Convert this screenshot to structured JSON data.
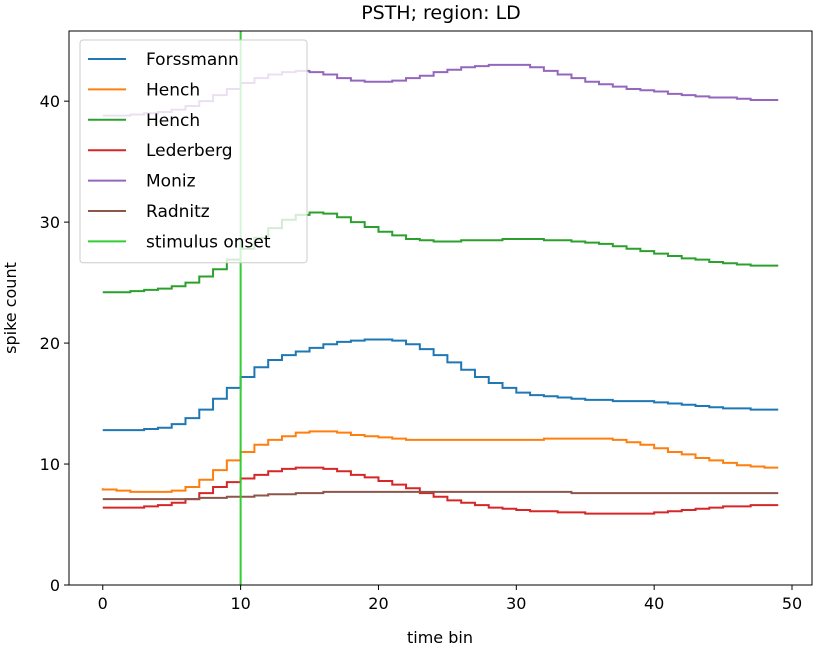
{
  "chart_data": {
    "type": "line",
    "step": true,
    "title": "PSTH; region: LD",
    "xlabel": "time bin",
    "ylabel": "spike count",
    "xlim": [
      -2.45,
      51.45
    ],
    "ylim": [
      0,
      45.8
    ],
    "xticks": [
      0,
      10,
      20,
      30,
      40,
      50
    ],
    "yticks": [
      0,
      10,
      20,
      30,
      40
    ],
    "grid": false,
    "legend_position": "top-left",
    "x": [
      0,
      1,
      2,
      3,
      4,
      5,
      6,
      7,
      8,
      9,
      10,
      11,
      12,
      13,
      14,
      15,
      16,
      17,
      18,
      19,
      20,
      21,
      22,
      23,
      24,
      25,
      26,
      27,
      28,
      29,
      30,
      31,
      32,
      33,
      34,
      35,
      36,
      37,
      38,
      39,
      40,
      41,
      42,
      43,
      44,
      45,
      46,
      47,
      48,
      49
    ],
    "series": [
      {
        "name": "Forssmann",
        "color": "#1f77b4",
        "values": [
          12.8,
          12.8,
          12.8,
          12.8,
          12.9,
          13.0,
          13.3,
          13.8,
          14.5,
          15.4,
          16.3,
          17.2,
          18.0,
          18.6,
          19.0,
          19.3,
          19.6,
          19.9,
          20.1,
          20.2,
          20.3,
          20.3,
          20.2,
          19.9,
          19.5,
          19.0,
          18.4,
          17.8,
          17.2,
          16.7,
          16.3,
          15.9,
          15.7,
          15.6,
          15.5,
          15.4,
          15.3,
          15.3,
          15.2,
          15.2,
          15.2,
          15.1,
          15.0,
          14.9,
          14.8,
          14.7,
          14.6,
          14.6,
          14.5,
          14.5
        ]
      },
      {
        "name": "Hench",
        "color": "#ff7f0e",
        "values": [
          8.0,
          7.9,
          7.8,
          7.7,
          7.7,
          7.7,
          7.8,
          8.1,
          8.7,
          9.5,
          10.3,
          11.0,
          11.6,
          12.0,
          12.3,
          12.6,
          12.7,
          12.7,
          12.6,
          12.4,
          12.3,
          12.2,
          12.1,
          12.0,
          12.0,
          12.0,
          12.0,
          12.0,
          12.0,
          12.0,
          12.0,
          12.0,
          12.0,
          12.1,
          12.1,
          12.1,
          12.1,
          12.1,
          12.0,
          11.8,
          11.6,
          11.3,
          11.0,
          10.8,
          10.5,
          10.3,
          10.1,
          9.9,
          9.8,
          9.7
        ]
      },
      {
        "name": "Hench",
        "color": "#2ca02c",
        "values": [
          24.2,
          24.2,
          24.2,
          24.3,
          24.4,
          24.5,
          24.7,
          25.0,
          25.5,
          26.1,
          26.9,
          27.8,
          28.7,
          29.5,
          30.2,
          30.6,
          30.8,
          30.7,
          30.4,
          30.0,
          29.6,
          29.2,
          28.9,
          28.6,
          28.5,
          28.4,
          28.4,
          28.5,
          28.5,
          28.5,
          28.6,
          28.6,
          28.6,
          28.5,
          28.5,
          28.4,
          28.3,
          28.2,
          28.0,
          27.8,
          27.6,
          27.4,
          27.2,
          27.0,
          26.9,
          26.7,
          26.6,
          26.5,
          26.4,
          26.4
        ]
      },
      {
        "name": "Lederberg",
        "color": "#d62728",
        "values": [
          6.4,
          6.4,
          6.4,
          6.4,
          6.5,
          6.6,
          6.8,
          7.1,
          7.6,
          8.1,
          8.5,
          8.8,
          9.1,
          9.4,
          9.6,
          9.7,
          9.7,
          9.6,
          9.4,
          9.1,
          8.9,
          8.6,
          8.3,
          8.0,
          7.6,
          7.3,
          7.0,
          6.8,
          6.6,
          6.4,
          6.3,
          6.2,
          6.1,
          6.1,
          6.0,
          6.0,
          5.9,
          5.9,
          5.9,
          5.9,
          5.9,
          6.0,
          6.1,
          6.2,
          6.3,
          6.4,
          6.5,
          6.5,
          6.6,
          6.6
        ]
      },
      {
        "name": "Moniz",
        "color": "#9467bd",
        "values": [
          38.8,
          38.8,
          38.8,
          38.9,
          39.0,
          39.1,
          39.3,
          39.6,
          40.0,
          40.5,
          41.0,
          41.5,
          41.9,
          42.2,
          42.4,
          42.5,
          42.4,
          42.2,
          41.9,
          41.7,
          41.6,
          41.6,
          41.7,
          41.9,
          42.1,
          42.4,
          42.6,
          42.8,
          42.9,
          43.0,
          43.0,
          43.0,
          42.8,
          42.5,
          42.2,
          41.9,
          41.6,
          41.4,
          41.2,
          41.0,
          40.9,
          40.8,
          40.6,
          40.5,
          40.4,
          40.3,
          40.3,
          40.2,
          40.1,
          40.1
        ]
      },
      {
        "name": "Radnitz",
        "color": "#8c564b",
        "values": [
          7.1,
          7.1,
          7.1,
          7.1,
          7.1,
          7.1,
          7.1,
          7.1,
          7.2,
          7.2,
          7.3,
          7.3,
          7.4,
          7.5,
          7.5,
          7.6,
          7.6,
          7.7,
          7.7,
          7.7,
          7.7,
          7.7,
          7.7,
          7.7,
          7.7,
          7.7,
          7.7,
          7.7,
          7.7,
          7.7,
          7.7,
          7.7,
          7.7,
          7.7,
          7.7,
          7.6,
          7.6,
          7.6,
          7.6,
          7.6,
          7.6,
          7.6,
          7.6,
          7.6,
          7.6,
          7.6,
          7.6,
          7.6,
          7.6,
          7.6
        ]
      }
    ],
    "annotations": [
      {
        "name": "stimulus onset",
        "type": "vline",
        "x": 10,
        "color": "#32cd32"
      }
    ]
  }
}
